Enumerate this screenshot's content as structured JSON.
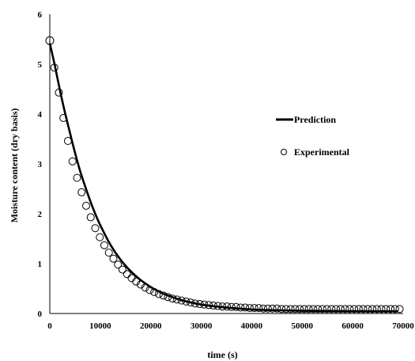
{
  "chart_data": {
    "type": "scatter",
    "xlabel": "time (s)",
    "ylabel": "Moisture content (dry basis)",
    "xlim": [
      0,
      70000
    ],
    "ylim": [
      0,
      6
    ],
    "xticks": [
      0,
      10000,
      20000,
      30000,
      40000,
      50000,
      60000,
      70000
    ],
    "yticks": [
      0,
      1,
      2,
      3,
      4,
      5,
      6
    ],
    "grid": false,
    "legend_position": "right",
    "series": [
      {
        "name": "Prediction",
        "style": "line",
        "color": "#000000",
        "x": [
          0,
          1000,
          2000,
          3000,
          4000,
          5000,
          6000,
          7000,
          8000,
          9000,
          10000,
          12000,
          14000,
          16000,
          18000,
          20000,
          22000,
          24000,
          26000,
          28000,
          30000,
          33000,
          36000,
          40000,
          45000,
          50000,
          55000,
          60000,
          65000,
          69000
        ],
        "y": [
          5.42,
          4.97,
          4.48,
          4.03,
          3.62,
          3.22,
          2.86,
          2.55,
          2.26,
          2.0,
          1.77,
          1.38,
          1.08,
          0.85,
          0.67,
          0.53,
          0.42,
          0.34,
          0.27,
          0.22,
          0.18,
          0.14,
          0.11,
          0.08,
          0.065,
          0.055,
          0.05,
          0.047,
          0.045,
          0.044
        ]
      },
      {
        "name": "Experimental",
        "style": "marker",
        "marker": "open-circle",
        "color": "#000000",
        "x": [
          0,
          900,
          1800,
          2700,
          3600,
          4500,
          5400,
          6300,
          7200,
          8100,
          9000,
          9900,
          10800,
          11700,
          12600,
          13500,
          14400,
          15300,
          16200,
          17100,
          18000,
          18900,
          19800,
          20700,
          21600,
          22500,
          23400,
          24300,
          25200,
          26100,
          27000,
          27900,
          28800,
          29700,
          30600,
          31500,
          32400,
          33300,
          34200,
          35100,
          36000,
          36900,
          37800,
          38700,
          39600,
          40500,
          41400,
          42300,
          43200,
          44100,
          45000,
          45900,
          46800,
          47700,
          48600,
          49500,
          50400,
          51300,
          52200,
          53100,
          54000,
          54900,
          55800,
          56700,
          57600,
          58500,
          59400,
          60300,
          61200,
          62100,
          63000,
          63900,
          64800,
          65700,
          66600,
          67500,
          68400,
          69300
        ],
        "y": [
          5.47,
          4.93,
          4.43,
          3.92,
          3.46,
          3.05,
          2.72,
          2.43,
          2.16,
          1.93,
          1.71,
          1.53,
          1.37,
          1.22,
          1.1,
          0.98,
          0.88,
          0.79,
          0.71,
          0.64,
          0.58,
          0.52,
          0.47,
          0.43,
          0.39,
          0.36,
          0.33,
          0.3,
          0.28,
          0.26,
          0.24,
          0.22,
          0.2,
          0.19,
          0.18,
          0.17,
          0.16,
          0.15,
          0.14,
          0.14,
          0.13,
          0.13,
          0.12,
          0.12,
          0.11,
          0.11,
          0.11,
          0.1,
          0.1,
          0.1,
          0.1,
          0.09,
          0.09,
          0.09,
          0.09,
          0.09,
          0.09,
          0.09,
          0.09,
          0.09,
          0.09,
          0.09,
          0.09,
          0.09,
          0.09,
          0.09,
          0.09,
          0.09,
          0.09,
          0.09,
          0.09,
          0.09,
          0.09,
          0.09,
          0.09,
          0.09,
          0.09,
          0.09
        ]
      }
    ]
  }
}
